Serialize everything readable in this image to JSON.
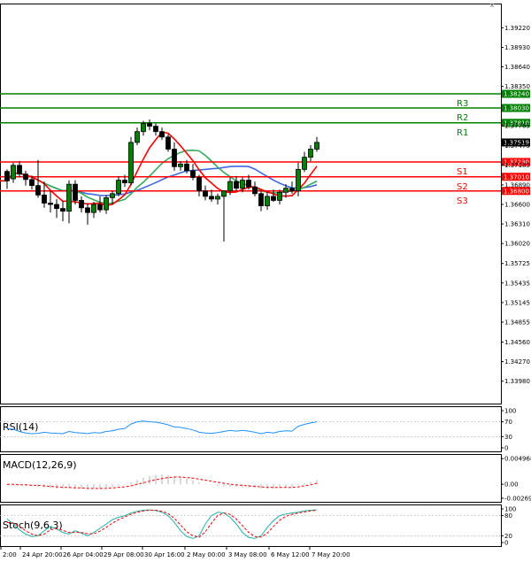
{
  "colors": {
    "bull_fill": "#ffffff",
    "bull_outline": "#000000",
    "bear_fill": "#000000",
    "candle_fill": "#008000",
    "resistance": "#008000",
    "support": "#ff0000",
    "ma_fast": "#ff0000",
    "ma_mid": "#36a95a",
    "ma_slow": "#4169e1",
    "rsi_line": "#1e90ff",
    "macd_hist": "#c0c0c0",
    "macd_signal": "#ff0000",
    "stoch_main": "#20b2aa",
    "stoch_signal": "#ff0000",
    "price_tag": "#000000"
  },
  "chart_data": [
    {
      "type": "candlestick",
      "panel": "main",
      "ylim": [
        1.337,
        1.395
      ],
      "ytick_labels": [
        "1.39220",
        "1.38930",
        "1.38640",
        "1.38350",
        "1.37765",
        "1.37475",
        "1.37185",
        "1.36890",
        "1.36600",
        "1.36310",
        "1.36020",
        "1.35725",
        "1.35435",
        "1.35145",
        "1.34855",
        "1.34560",
        "1.34270",
        "1.33980"
      ],
      "ytick_values": [
        1.3922,
        1.3893,
        1.3864,
        1.3835,
        1.37765,
        1.37475,
        1.37185,
        1.3689,
        1.366,
        1.3631,
        1.3602,
        1.35725,
        1.35435,
        1.35145,
        1.34855,
        1.3456,
        1.3427,
        1.3398
      ],
      "xtick_labels": [
        "2:00",
        "24 Apr 20:00",
        "26 Apr 04:00",
        "29 Apr 08:00",
        "30 Apr 16:00",
        "2 May 00:00",
        "3 May 08:00",
        "6 May 12:00",
        "7 May 20:00"
      ],
      "current_price": {
        "label": "1.37519",
        "value": 1.37519
      },
      "levels": [
        {
          "name": "R3",
          "value": 1.3824,
          "label": "1.38240",
          "kind": "resistance"
        },
        {
          "name": "R2",
          "value": 1.3803,
          "label": "1.38030",
          "kind": "resistance"
        },
        {
          "name": "R1",
          "value": 1.3781,
          "label": "1.37810",
          "kind": "resistance"
        },
        {
          "name": "S1",
          "value": 1.3723,
          "label": "1.37230",
          "kind": "support"
        },
        {
          "name": "S2",
          "value": 1.3701,
          "label": "1.37010",
          "kind": "support"
        },
        {
          "name": "S3",
          "value": 1.368,
          "label": "1.36800",
          "kind": "support"
        }
      ],
      "candles": [
        {
          "o": 1.3709,
          "h": 1.3712,
          "l": 1.3683,
          "c": 1.3695
        },
        {
          "o": 1.3698,
          "h": 1.3722,
          "l": 1.3692,
          "c": 1.3718
        },
        {
          "o": 1.3718,
          "h": 1.3724,
          "l": 1.37,
          "c": 1.3705
        },
        {
          "o": 1.3705,
          "h": 1.371,
          "l": 1.3688,
          "c": 1.3697
        },
        {
          "o": 1.3697,
          "h": 1.3703,
          "l": 1.3682,
          "c": 1.3688
        },
        {
          "o": 1.3688,
          "h": 1.3726,
          "l": 1.367,
          "c": 1.3674
        },
        {
          "o": 1.3674,
          "h": 1.3694,
          "l": 1.3655,
          "c": 1.3662
        },
        {
          "o": 1.3662,
          "h": 1.368,
          "l": 1.3648,
          "c": 1.366
        },
        {
          "o": 1.366,
          "h": 1.3668,
          "l": 1.364,
          "c": 1.3654
        },
        {
          "o": 1.3654,
          "h": 1.3665,
          "l": 1.3635,
          "c": 1.365
        },
        {
          "o": 1.365,
          "h": 1.3696,
          "l": 1.3632,
          "c": 1.369
        },
        {
          "o": 1.369,
          "h": 1.3696,
          "l": 1.366,
          "c": 1.3666
        },
        {
          "o": 1.3666,
          "h": 1.3672,
          "l": 1.3648,
          "c": 1.3655
        },
        {
          "o": 1.3655,
          "h": 1.3662,
          "l": 1.363,
          "c": 1.3648
        },
        {
          "o": 1.3648,
          "h": 1.3664,
          "l": 1.364,
          "c": 1.366
        },
        {
          "o": 1.366,
          "h": 1.3672,
          "l": 1.3648,
          "c": 1.3652
        },
        {
          "o": 1.3652,
          "h": 1.3674,
          "l": 1.3646,
          "c": 1.367
        },
        {
          "o": 1.367,
          "h": 1.368,
          "l": 1.366,
          "c": 1.3676
        },
        {
          "o": 1.3676,
          "h": 1.3702,
          "l": 1.3672,
          "c": 1.3696
        },
        {
          "o": 1.3696,
          "h": 1.3704,
          "l": 1.3686,
          "c": 1.3692
        },
        {
          "o": 1.3692,
          "h": 1.376,
          "l": 1.3688,
          "c": 1.3752
        },
        {
          "o": 1.3752,
          "h": 1.3774,
          "l": 1.3748,
          "c": 1.3768
        },
        {
          "o": 1.3768,
          "h": 1.3784,
          "l": 1.3762,
          "c": 1.378
        },
        {
          "o": 1.378,
          "h": 1.3786,
          "l": 1.377,
          "c": 1.3776
        },
        {
          "o": 1.3776,
          "h": 1.378,
          "l": 1.3762,
          "c": 1.3768
        },
        {
          "o": 1.3768,
          "h": 1.3774,
          "l": 1.3756,
          "c": 1.376
        },
        {
          "o": 1.376,
          "h": 1.3764,
          "l": 1.3738,
          "c": 1.3742
        },
        {
          "o": 1.3742,
          "h": 1.3752,
          "l": 1.371,
          "c": 1.3716
        },
        {
          "o": 1.3716,
          "h": 1.3724,
          "l": 1.371,
          "c": 1.372
        },
        {
          "o": 1.372,
          "h": 1.3726,
          "l": 1.3706,
          "c": 1.371
        },
        {
          "o": 1.371,
          "h": 1.372,
          "l": 1.3696,
          "c": 1.37
        },
        {
          "o": 1.37,
          "h": 1.3704,
          "l": 1.3672,
          "c": 1.368
        },
        {
          "o": 1.368,
          "h": 1.3688,
          "l": 1.3666,
          "c": 1.3672
        },
        {
          "o": 1.3672,
          "h": 1.3682,
          "l": 1.3664,
          "c": 1.3668
        },
        {
          "o": 1.3668,
          "h": 1.3676,
          "l": 1.366,
          "c": 1.3672
        },
        {
          "o": 1.3672,
          "h": 1.3678,
          "l": 1.3605,
          "c": 1.368
        },
        {
          "o": 1.368,
          "h": 1.37,
          "l": 1.3674,
          "c": 1.3694
        },
        {
          "o": 1.3694,
          "h": 1.3702,
          "l": 1.368,
          "c": 1.3684
        },
        {
          "o": 1.3684,
          "h": 1.37,
          "l": 1.3678,
          "c": 1.3696
        },
        {
          "o": 1.3696,
          "h": 1.3704,
          "l": 1.3682,
          "c": 1.3686
        },
        {
          "o": 1.3686,
          "h": 1.3694,
          "l": 1.3672,
          "c": 1.3676
        },
        {
          "o": 1.3676,
          "h": 1.368,
          "l": 1.365,
          "c": 1.3658
        },
        {
          "o": 1.3658,
          "h": 1.3678,
          "l": 1.3652,
          "c": 1.3672
        },
        {
          "o": 1.3672,
          "h": 1.3682,
          "l": 1.3664,
          "c": 1.3666
        },
        {
          "o": 1.3666,
          "h": 1.3682,
          "l": 1.366,
          "c": 1.3678
        },
        {
          "o": 1.3678,
          "h": 1.369,
          "l": 1.367,
          "c": 1.3684
        },
        {
          "o": 1.3684,
          "h": 1.3694,
          "l": 1.3676,
          "c": 1.368
        },
        {
          "o": 1.368,
          "h": 1.3722,
          "l": 1.3672,
          "c": 1.3712
        },
        {
          "o": 1.3712,
          "h": 1.3738,
          "l": 1.3708,
          "c": 1.373
        },
        {
          "o": 1.373,
          "h": 1.3748,
          "l": 1.3724,
          "c": 1.3742
        },
        {
          "o": 1.3742,
          "h": 1.376,
          "l": 1.3738,
          "c": 1.3752
        }
      ]
    },
    {
      "type": "line",
      "panel": "rsi",
      "title": "RSI(14)",
      "ylim": [
        0,
        100
      ],
      "ytick_labels": [
        "100",
        "70",
        "30",
        "0"
      ],
      "values": [
        52,
        50,
        44,
        40,
        38,
        39,
        42,
        40,
        39,
        38,
        44,
        41,
        40,
        38,
        41,
        40,
        44,
        46,
        50,
        52,
        64,
        70,
        72,
        70,
        69,
        66,
        62,
        56,
        55,
        52,
        48,
        42,
        40,
        39,
        41,
        44,
        47,
        45,
        47,
        45,
        42,
        38,
        42,
        40,
        44,
        46,
        45,
        58,
        63,
        67,
        70
      ]
    },
    {
      "type": "bar+line",
      "panel": "macd",
      "title": "MACD(12,26,9)",
      "ylim": [
        -0.0027,
        0.005
      ],
      "ytick_labels": [
        "0.004968",
        "0.00",
        "-0.002696"
      ],
      "histogram": [
        -0.0002,
        -0.0001,
        -0.0002,
        -0.0003,
        -0.0004,
        -0.0005,
        -0.0006,
        -0.0007,
        -0.0008,
        -0.0008,
        -0.0007,
        -0.0007,
        -0.0008,
        -0.0009,
        -0.0009,
        -0.0008,
        -0.0007,
        -0.0005,
        -0.0003,
        -0.0001,
        0.0004,
        0.0009,
        0.0013,
        0.0016,
        0.0018,
        0.0019,
        0.0018,
        0.0016,
        0.0014,
        0.0011,
        0.0008,
        0.0004,
        0.0001,
        -0.0001,
        -0.0003,
        -0.0004,
        -0.0005,
        -0.0005,
        -0.0006,
        -0.0006,
        -0.0007,
        -0.0008,
        -0.0008,
        -0.0008,
        -0.0007,
        -0.0006,
        -0.0005,
        -0.0002,
        0.0002,
        0.0005,
        0.0008
      ],
      "signal": [
        0.0,
        0.0,
        -0.0001,
        -0.0001,
        -0.0002,
        -0.0002,
        -0.0003,
        -0.0004,
        -0.0005,
        -0.0006,
        -0.0006,
        -0.0007,
        -0.0007,
        -0.0008,
        -0.0008,
        -0.0008,
        -0.0008,
        -0.0007,
        -0.0006,
        -0.0005,
        -0.0003,
        0.0,
        0.0003,
        0.0006,
        0.0009,
        0.0011,
        0.0013,
        0.0014,
        0.0014,
        0.0013,
        0.0012,
        0.001,
        0.0008,
        0.0006,
        0.0004,
        0.0002,
        0.0,
        -0.0001,
        -0.0002,
        -0.0003,
        -0.0004,
        -0.0005,
        -0.0006,
        -0.0006,
        -0.0006,
        -0.0006,
        -0.0006,
        -0.0005,
        -0.0003,
        -0.0001,
        0.0002
      ]
    },
    {
      "type": "line",
      "panel": "stoch",
      "title": "Stoch(9,6,3)",
      "ylim": [
        0,
        100
      ],
      "ytick_labels": [
        "100",
        "80",
        "20",
        "0"
      ],
      "main": [
        70,
        55,
        38,
        25,
        18,
        20,
        35,
        48,
        40,
        30,
        25,
        35,
        28,
        20,
        30,
        42,
        55,
        68,
        75,
        80,
        88,
        93,
        96,
        97,
        95,
        90,
        80,
        60,
        35,
        18,
        12,
        20,
        55,
        80,
        90,
        88,
        75,
        55,
        30,
        15,
        12,
        20,
        45,
        65,
        80,
        85,
        88,
        90,
        94,
        96,
        97
      ],
      "signal": [
        60,
        58,
        48,
        35,
        25,
        20,
        25,
        38,
        42,
        36,
        30,
        30,
        30,
        26,
        26,
        34,
        45,
        58,
        68,
        76,
        84,
        90,
        94,
        96,
        96,
        93,
        86,
        72,
        52,
        32,
        20,
        16,
        32,
        58,
        80,
        88,
        84,
        70,
        50,
        30,
        18,
        16,
        28,
        48,
        66,
        78,
        84,
        88,
        91,
        94,
        96
      ]
    }
  ]
}
